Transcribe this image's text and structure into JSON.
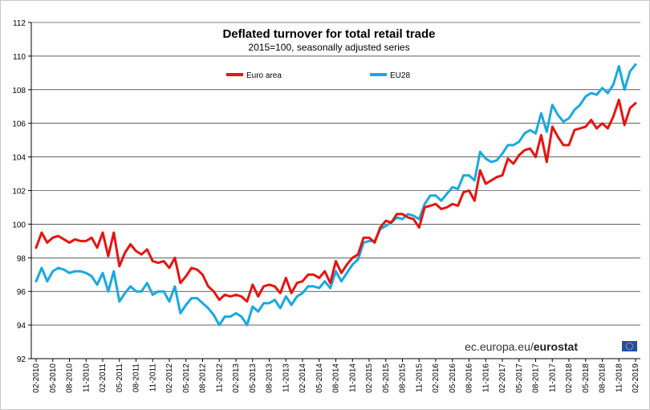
{
  "chart_data": {
    "type": "line",
    "title": "Deflated turnover for total retail trade",
    "subtitle": "2015=100, seasonally adjusted series",
    "ylim": [
      92,
      112
    ],
    "yticks": [
      "92",
      "94",
      "96",
      "98",
      "100",
      "102",
      "104",
      "106",
      "108",
      "110",
      "112"
    ],
    "x_tick_labels": [
      "02-2010",
      "05-2010",
      "08-2010",
      "11-2010",
      "02-2011",
      "05-2011",
      "08-2011",
      "11-2011",
      "02-2012",
      "05-2012",
      "08-2012",
      "11-2012",
      "02-2013",
      "05-2013",
      "08-2013",
      "11-2013",
      "02-2014",
      "05-2014",
      "08-2014",
      "11-2014",
      "02-2015",
      "05-2015",
      "08-2015",
      "11-2015",
      "02-2016",
      "05-2016",
      "08-2016",
      "11-2016",
      "02-2017",
      "05-2017",
      "08-2017",
      "11-2017",
      "02-2018",
      "05-2018",
      "08-2018",
      "11-2018",
      "02-2019"
    ],
    "series": [
      {
        "name": "Euro area",
        "color": "#e8130f",
        "values": [
          98.6,
          99.5,
          98.9,
          99.2,
          99.3,
          99.1,
          98.9,
          99.1,
          99.0,
          99.0,
          99.2,
          98.6,
          99.5,
          98.1,
          99.5,
          97.5,
          98.3,
          98.8,
          98.4,
          98.2,
          98.5,
          97.8,
          97.7,
          97.8,
          97.4,
          98.0,
          96.5,
          96.9,
          97.4,
          97.3,
          97.0,
          96.3,
          96.0,
          95.5,
          95.8,
          95.7,
          95.8,
          95.7,
          95.4,
          96.4,
          95.7,
          96.3,
          96.4,
          96.3,
          95.9,
          96.8,
          95.9,
          96.5,
          96.6,
          97.0,
          97.0,
          96.8,
          97.2,
          96.5,
          97.8,
          97.1,
          97.6,
          98.0,
          98.2,
          99.2,
          99.2,
          98.9,
          99.8,
          100.2,
          100.1,
          100.6,
          100.6,
          100.4,
          100.3,
          99.8,
          101.0,
          101.1,
          101.2,
          100.9,
          101.0,
          101.2,
          101.1,
          101.9,
          102.0,
          101.4,
          103.2,
          102.4,
          102.6,
          102.8,
          102.9,
          103.9,
          103.6,
          104.1,
          104.4,
          104.5,
          104.0,
          105.3,
          103.7,
          105.8,
          105.2,
          104.7,
          104.7,
          105.6,
          105.7,
          105.8,
          106.2,
          105.7,
          106.0,
          105.7,
          106.4,
          107.4,
          105.9,
          106.9,
          107.2
        ]
      },
      {
        "name": "EU28",
        "color": "#17a9e1",
        "values": [
          96.6,
          97.4,
          96.6,
          97.2,
          97.4,
          97.3,
          97.1,
          97.2,
          97.2,
          97.1,
          96.9,
          96.4,
          97.1,
          96.0,
          97.2,
          95.4,
          95.9,
          96.3,
          96.0,
          96.0,
          96.5,
          95.8,
          96.0,
          96.0,
          95.4,
          96.3,
          94.7,
          95.2,
          95.6,
          95.6,
          95.3,
          95.0,
          94.6,
          94.0,
          94.5,
          94.5,
          94.7,
          94.5,
          94.0,
          95.1,
          94.8,
          95.3,
          95.3,
          95.5,
          95.0,
          95.7,
          95.2,
          95.7,
          95.9,
          96.3,
          96.3,
          96.2,
          96.6,
          96.2,
          97.2,
          96.6,
          97.1,
          97.6,
          97.9,
          98.9,
          99.0,
          99.0,
          99.7,
          99.9,
          100.1,
          100.4,
          100.3,
          100.6,
          100.5,
          100.3,
          101.2,
          101.7,
          101.7,
          101.4,
          101.8,
          102.2,
          102.1,
          102.9,
          102.9,
          102.6,
          104.3,
          103.9,
          103.7,
          103.8,
          104.2,
          104.7,
          104.7,
          104.9,
          105.4,
          105.6,
          105.4,
          106.6,
          105.5,
          107.1,
          106.5,
          106.1,
          106.3,
          106.8,
          107.1,
          107.6,
          107.8,
          107.7,
          108.1,
          107.8,
          108.3,
          109.4,
          108.0,
          109.1,
          109.5
        ]
      }
    ]
  },
  "source": {
    "prefix": "ec.europa.eu/",
    "brand": "eurostat"
  },
  "colors": {
    "grid": "#000000",
    "eu_flag": "#1f4fa8",
    "eu_star": "#ffd200"
  }
}
